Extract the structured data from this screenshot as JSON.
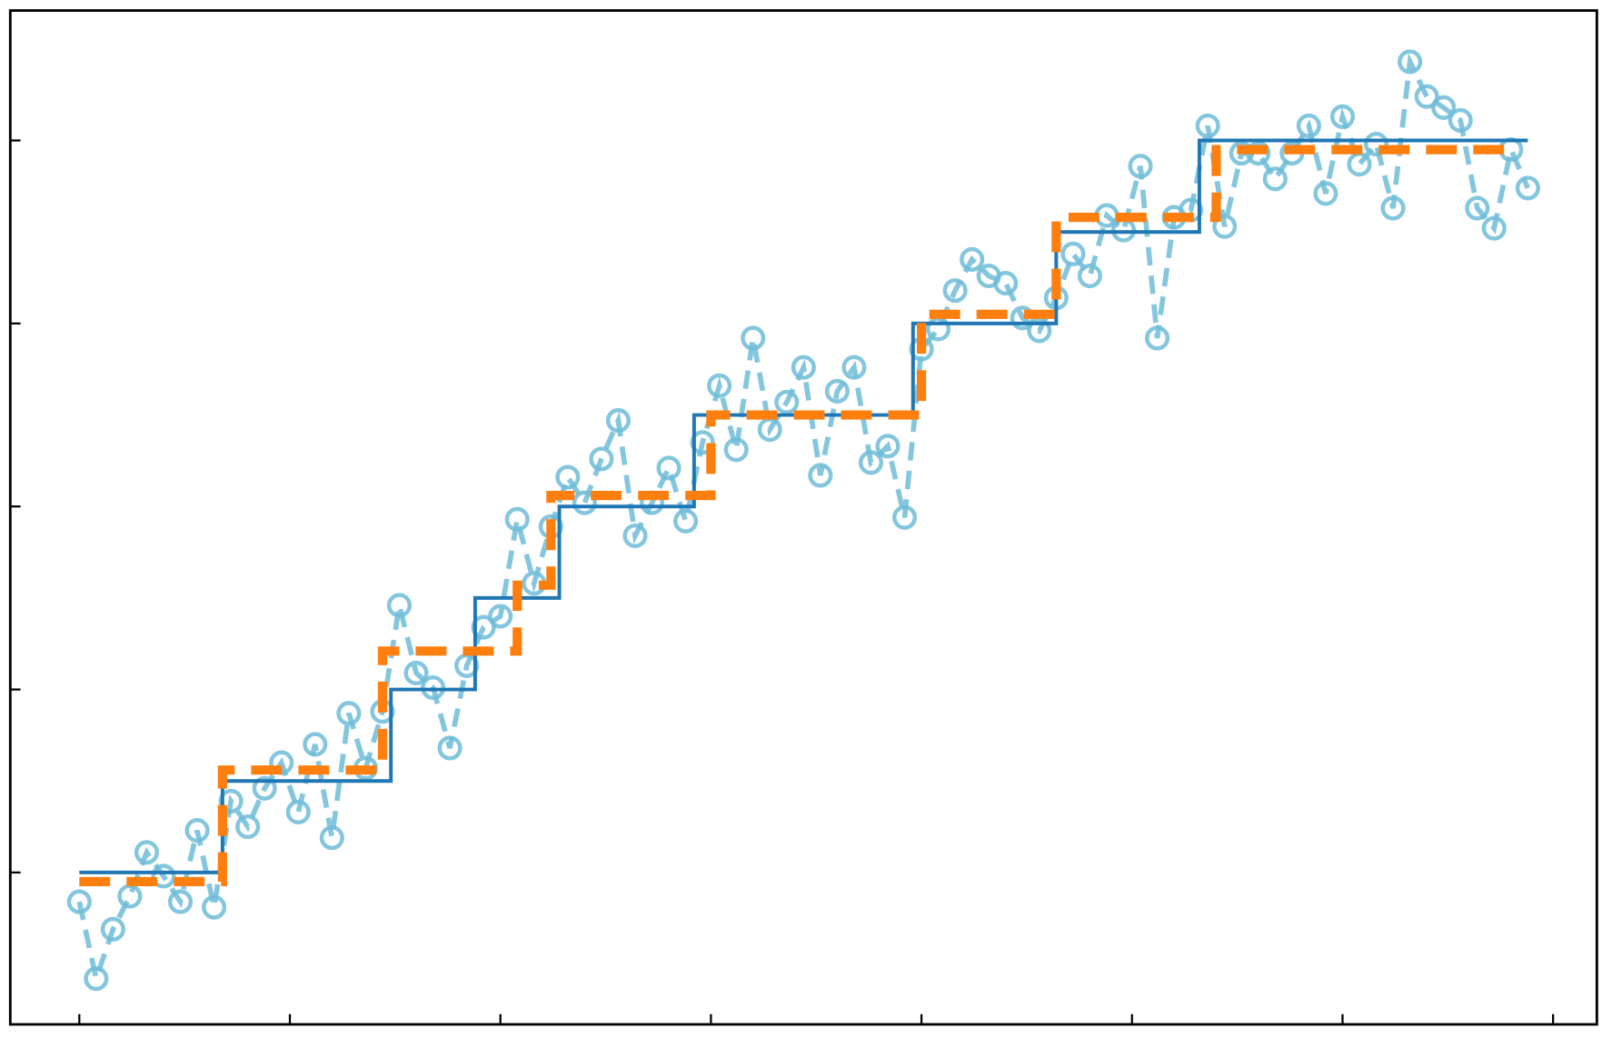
{
  "chart_data": {
    "type": "line",
    "xlim": [
      -8.2,
      180.2
    ],
    "xticks": [
      0,
      25,
      50,
      75,
      100,
      125,
      150,
      175
    ],
    "ylim": [
      -0.83,
      4.71
    ],
    "yticks": [
      0,
      1,
      2,
      3,
      4
    ],
    "series": [
      {
        "color": "#6fbcd8",
        "style": "dashed",
        "marker": "circle",
        "x": [
          0,
          2,
          4,
          6,
          8,
          10,
          12,
          14,
          16,
          18,
          20,
          22,
          24,
          26,
          28,
          30,
          32,
          34,
          36,
          38,
          40,
          42,
          44,
          46,
          48,
          50,
          52,
          54,
          56,
          58,
          60,
          62,
          64,
          66,
          68,
          70,
          72,
          74,
          76,
          78,
          80,
          82,
          84,
          86,
          88,
          90,
          92,
          94,
          96,
          98,
          100,
          102,
          104,
          106,
          108,
          110,
          112,
          114,
          116,
          118,
          120,
          122,
          124,
          126,
          128,
          130,
          132,
          134,
          136,
          138,
          140,
          142,
          144,
          146,
          148,
          150,
          152,
          154,
          156,
          158,
          160,
          162,
          164,
          166,
          168,
          170,
          172
        ],
        "values": [
          -0.16,
          -0.58,
          -0.31,
          -0.13,
          0.11,
          -0.02,
          -0.16,
          0.23,
          -0.19,
          0.39,
          0.25,
          0.46,
          0.6,
          0.33,
          0.7,
          0.19,
          0.87,
          0.57,
          0.88,
          1.46,
          1.09,
          1.01,
          0.68,
          1.13,
          1.34,
          1.4,
          1.93,
          1.58,
          1.89,
          2.16,
          2.02,
          2.26,
          2.47,
          1.84,
          2.02,
          2.21,
          1.92,
          2.35,
          2.66,
          2.31,
          2.92,
          2.42,
          2.57,
          2.76,
          2.17,
          2.63,
          2.76,
          2.24,
          2.33,
          1.94,
          2.86,
          2.97,
          3.18,
          3.35,
          3.26,
          3.22,
          3.03,
          2.96,
          3.14,
          3.38,
          3.26,
          3.59,
          3.51,
          3.86,
          2.92,
          3.58,
          3.62,
          4.08,
          3.53,
          3.93,
          3.93,
          3.79,
          3.93,
          4.08,
          3.71,
          4.13,
          3.87,
          3.98,
          3.63,
          4.43,
          4.24,
          4.18,
          4.11,
          3.63,
          3.52,
          3.95,
          3.74
        ]
      },
      {
        "color": "#1f77b4",
        "style": "solid",
        "step": "post",
        "x": [
          0,
          17,
          37,
          47,
          57,
          73,
          99,
          116,
          133,
          172
        ],
        "values": [
          0,
          0.5,
          1,
          1.5,
          2,
          2.5,
          3,
          3.5,
          4,
          4
        ]
      },
      {
        "color": "#ff7f0e",
        "style": "dashed",
        "step": "post",
        "x": [
          0,
          17,
          36,
          52,
          56,
          75,
          100,
          116,
          135,
          170
        ],
        "values": [
          -0.05,
          0.56,
          1.21,
          1.57,
          2.06,
          2.5,
          3.05,
          3.58,
          3.95,
          3.95
        ]
      }
    ]
  }
}
